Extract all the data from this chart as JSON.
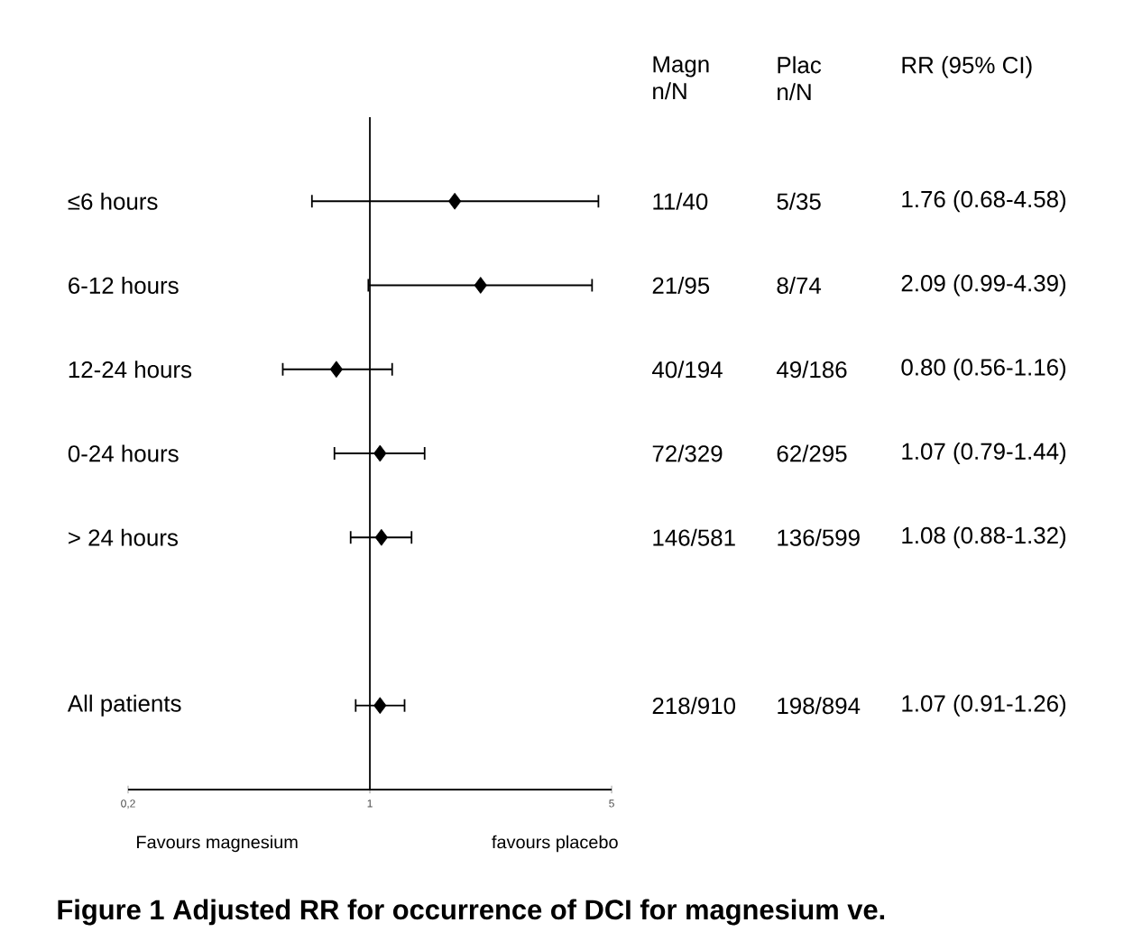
{
  "chart_data": {
    "type": "scatter",
    "orientation": "horizontal",
    "categories": [
      "≤6 hours",
      "6-12 hours",
      "12-24 hours",
      "0-24 hours",
      "> 24 hours",
      null,
      "All patients"
    ],
    "values": [
      1.76,
      2.09,
      0.8,
      1.07,
      1.08,
      null,
      1.07
    ],
    "errors": [
      [
        0.68,
        4.58
      ],
      [
        0.99,
        4.39
      ],
      [
        0.56,
        1.16
      ],
      [
        0.79,
        1.44
      ],
      [
        0.88,
        1.32
      ],
      null,
      [
        0.91,
        1.26
      ]
    ],
    "value_labels": [
      "1.76 (0.68-4.58)",
      "2.09 (0.99-4.39)",
      "0.80 (0.56-1.16)",
      "1.07 (0.79-1.44)",
      "1.08 (0.88-1.32)",
      null,
      "1.07 (0.91-1.26)"
    ],
    "color": "#000000",
    "marker": "diamond",
    "log": "x",
    "xlim": [
      0.2,
      5
    ],
    "xticks": [
      {
        "value": 0.2,
        "label": "0,2"
      },
      1,
      5
    ],
    "ref_lines": [
      {
        "axis": "x",
        "value": 1,
        "color": "#000000"
      }
    ],
    "annotations": [
      "Magn n/N",
      "Plac n/N",
      "RR   (95% CI)",
      "11/40",
      "5/35",
      "21/95",
      "8/74",
      "40/194",
      "49/186",
      "72/329",
      "62/295",
      "146/581",
      "136/599",
      "218/910",
      "198/894",
      "Favours magnesium",
      "favours placebo",
      "Figure 1 Adjusted RR for occurrence of DCI for magnesium ve."
    ]
  }
}
